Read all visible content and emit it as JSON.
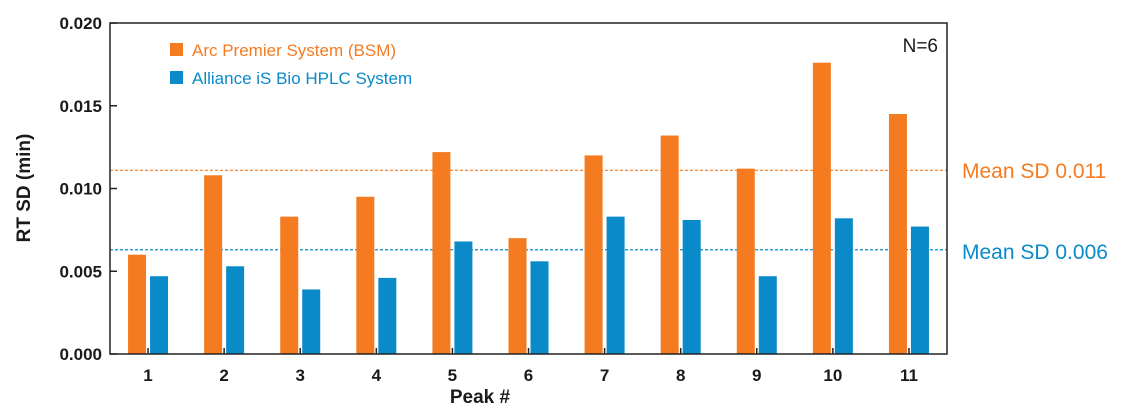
{
  "chart_data": {
    "type": "bar",
    "xlabel": "Peak #",
    "ylabel": "RT SD (min)",
    "ylim": [
      0,
      0.02
    ],
    "yticks": [
      "0.000",
      "0.005",
      "0.010",
      "0.015",
      "0.020"
    ],
    "categories": [
      "1",
      "2",
      "3",
      "4",
      "5",
      "6",
      "7",
      "8",
      "9",
      "10",
      "11"
    ],
    "series": [
      {
        "name": "Arc Premier System (BSM)",
        "color": "#F47B20",
        "values": [
          0.006,
          0.0108,
          0.0083,
          0.0095,
          0.0122,
          0.007,
          0.012,
          0.0132,
          0.0112,
          0.0176,
          0.0145
        ]
      },
      {
        "name": "Alliance iS Bio HPLC System",
        "color": "#0A8AC9",
        "values": [
          0.0047,
          0.0053,
          0.0039,
          0.0046,
          0.0068,
          0.0056,
          0.0083,
          0.0081,
          0.0047,
          0.0082,
          0.0077
        ]
      }
    ],
    "annotation": "N=6",
    "mean_lines": [
      {
        "label": "Mean SD 0.011",
        "value": 0.0111,
        "color": "#F47B20"
      },
      {
        "label": "Mean SD 0.006",
        "value": 0.0063,
        "color": "#0A8AC9"
      }
    ],
    "legend_position": "top-left",
    "grid": false
  }
}
